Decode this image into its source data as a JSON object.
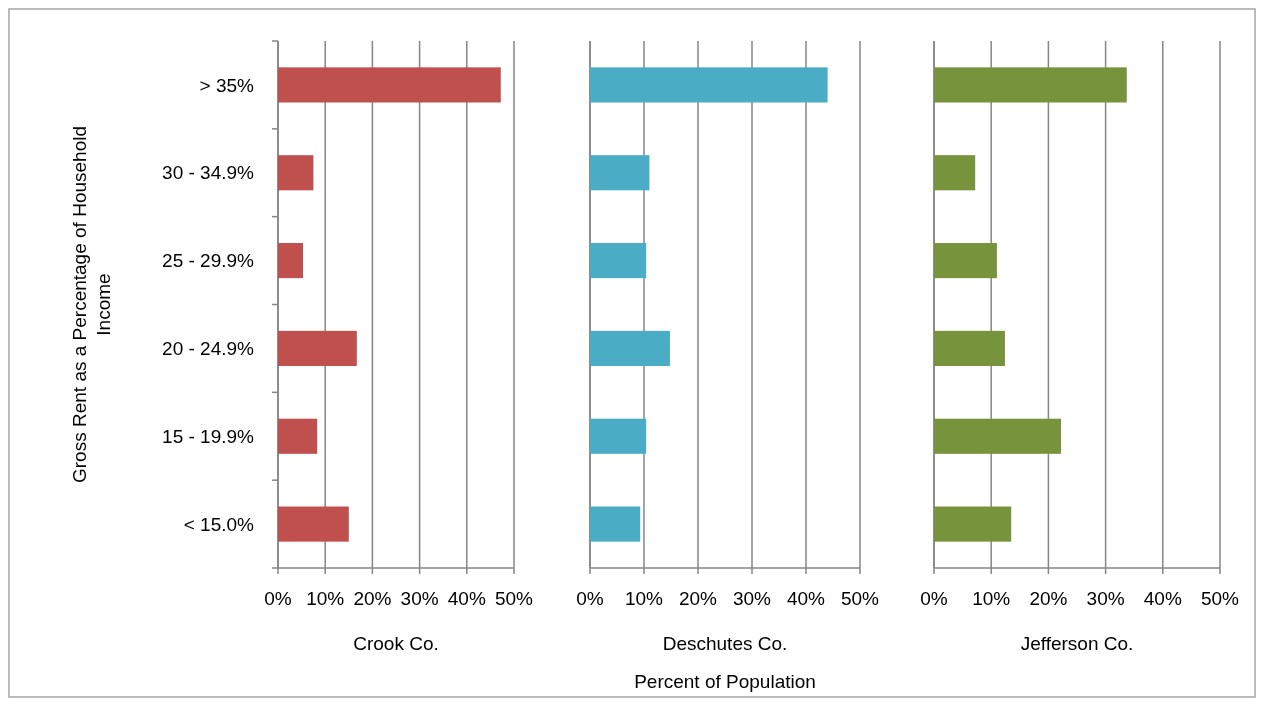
{
  "chart_data": [
    {
      "type": "bar",
      "orientation": "horizontal",
      "categories": [
        "> 35%",
        "30 - 34.9%",
        "25 - 29.9%",
        "20 - 24.9%",
        "15 - 19.9%",
        "< 15.0%"
      ],
      "series": [
        {
          "color": "#c0504d",
          "values": [
            47.2,
            7.5,
            5.3,
            16.7,
            8.3,
            15.0
          ]
        }
      ],
      "xlim": [
        0,
        50
      ],
      "xticks": [
        {
          "value": 0,
          "label": "0%"
        },
        {
          "value": 10,
          "label": "10%"
        },
        {
          "value": 20,
          "label": "20%"
        },
        {
          "value": 30,
          "label": "30%"
        },
        {
          "value": 40,
          "label": "40%"
        },
        {
          "value": 50,
          "label": "50%"
        }
      ],
      "xlabel": "Crook Co.",
      "ylabel": "Gross Rent as a Percentage of Household Income",
      "grid": "x"
    },
    {
      "type": "bar",
      "orientation": "horizontal",
      "categories": [
        null,
        null,
        null,
        null,
        null,
        null
      ],
      "series": [
        {
          "color": "#4bacc6",
          "values": [
            44.0,
            11.0,
            10.4,
            14.8,
            10.4,
            9.3
          ]
        }
      ],
      "xlim": [
        0,
        50
      ],
      "xticks": [
        {
          "value": 0,
          "label": "0%"
        },
        {
          "value": 10,
          "label": "10%"
        },
        {
          "value": 20,
          "label": "20%"
        },
        {
          "value": 30,
          "label": "30%"
        },
        {
          "value": 40,
          "label": "40%"
        },
        {
          "value": 50,
          "label": "50%"
        }
      ],
      "xlabel": "Deschutes Co.",
      "annotations": [
        "Percent of Population"
      ],
      "grid": "x",
      "tick_labels": "x"
    },
    {
      "type": "bar",
      "orientation": "horizontal",
      "categories": [
        null,
        null,
        null,
        null,
        null,
        null
      ],
      "series": [
        {
          "color": "#77933c",
          "values": [
            33.7,
            7.2,
            11.0,
            12.4,
            22.2,
            13.5
          ]
        }
      ],
      "xlim": [
        0,
        50
      ],
      "xticks": [
        {
          "value": 0,
          "label": "0%"
        },
        {
          "value": 10,
          "label": "10%"
        },
        {
          "value": 20,
          "label": "20%"
        },
        {
          "value": 30,
          "label": "30%"
        },
        {
          "value": 40,
          "label": "40%"
        },
        {
          "value": 50,
          "label": "50%"
        }
      ],
      "xlabel": "Jefferson Co.",
      "grid": "x",
      "tick_labels": "x"
    }
  ]
}
